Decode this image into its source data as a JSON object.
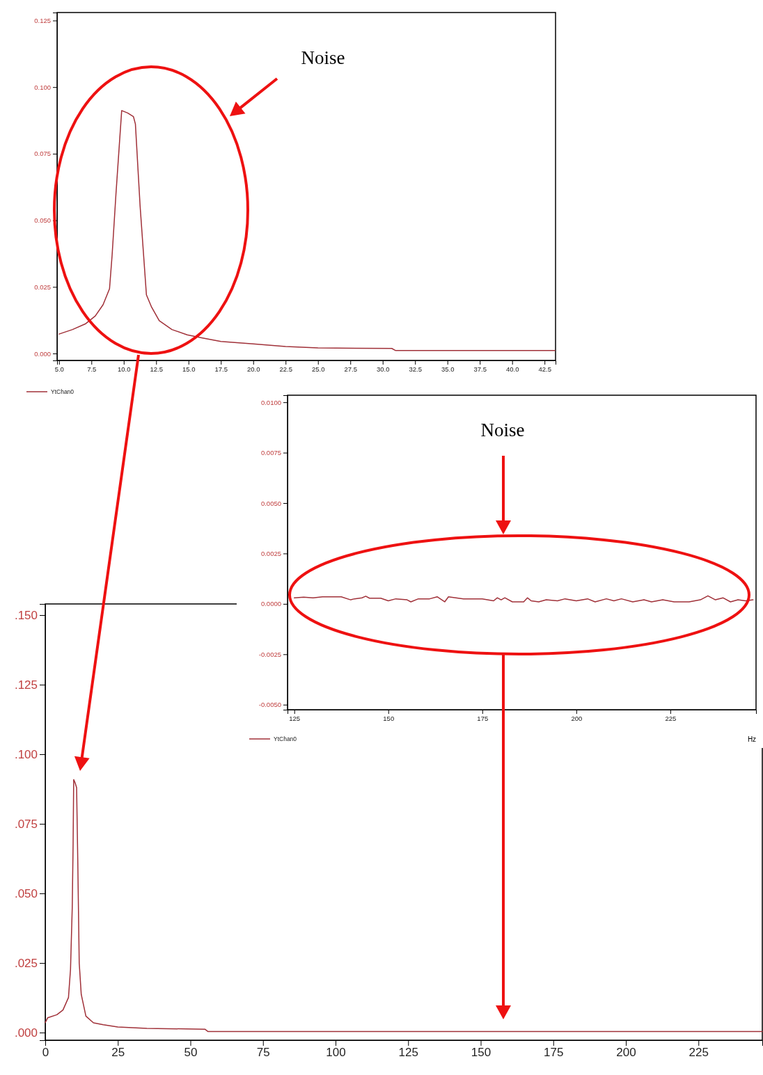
{
  "chart_data": [
    {
      "type": "line",
      "xlim": [
        4.85,
        43.35
      ],
      "ylim": [
        -0.0026,
        0.128
      ],
      "xticks": [
        {
          "value": 5,
          "label": "5.0"
        },
        7.5,
        {
          "value": 10,
          "label": "10.0"
        },
        12.5,
        {
          "value": 15,
          "label": "15.0"
        },
        17.5,
        {
          "value": 20,
          "label": "20.0"
        },
        22.5,
        {
          "value": 25,
          "label": "25.0"
        },
        27.5,
        {
          "value": 30,
          "label": "30.0"
        },
        32.5,
        {
          "value": 35,
          "label": "35.0"
        },
        37.5,
        {
          "value": 40,
          "label": "40.0"
        },
        42.5
      ],
      "yticks": [
        {
          "value": 0,
          "label": "0.000"
        },
        0.025,
        {
          "value": 0.05,
          "label": "0.050"
        },
        0.075,
        {
          "value": 0.1,
          "label": "0.100"
        },
        0.125
      ],
      "legend": "bottom left",
      "annotations": [
        "Noise"
      ],
      "series": [
        {
          "name": "YtChan0",
          "color": "#a03038",
          "x": [
            5,
            6.04,
            7.03,
            7.8,
            8.4,
            8.9,
            9.1,
            9.4,
            9.84,
            10.3,
            10.75,
            10.9,
            11.26,
            11.75,
            12.15,
            12.74,
            13.72,
            14.9,
            16.08,
            17.5,
            20,
            22.5,
            25,
            30.7,
            31,
            43.3
          ],
          "values": [
            0.0073,
            0.009,
            0.0111,
            0.0141,
            0.0183,
            0.0243,
            0.0369,
            0.0601,
            0.0912,
            0.0903,
            0.0889,
            0.0861,
            0.0555,
            0.022,
            0.0174,
            0.0123,
            0.009,
            0.007,
            0.0058,
            0.0045,
            0.0036,
            0.0026,
            0.0021,
            0.0019,
            0.0011,
            0.0011
          ]
        }
      ]
    },
    {
      "type": "line",
      "xlim": [
        123.2,
        247.8
      ],
      "ylim": [
        -0.00525,
        0.01035
      ],
      "xlabel": "Hz",
      "xticks": [
        125,
        150,
        175,
        200,
        225
      ],
      "yticks": [
        {
          "value": -0.005,
          "label": "-0.0050"
        },
        {
          "value": -0.0025,
          "label": "-0.0025"
        },
        {
          "value": 0,
          "label": "0.0000"
        },
        {
          "value": 0.0025,
          "label": "0.0025"
        },
        {
          "value": 0.005,
          "label": "0.0050"
        },
        {
          "value": 0.0075,
          "label": "0.0075"
        },
        {
          "value": 0.01,
          "label": "0.0100"
        }
      ],
      "legend": "bottom left",
      "annotations": [
        "Noise"
      ],
      "series": [
        {
          "name": "YtChan0",
          "color": "#a03038",
          "x": [
            125,
            127.5,
            130,
            132.5,
            135,
            137.5,
            140,
            141,
            143,
            144,
            145,
            148,
            150,
            152,
            155,
            156,
            158,
            161,
            163,
            165,
            166,
            170,
            175,
            178,
            179,
            180,
            181,
            183,
            186,
            187,
            188,
            190,
            192,
            195,
            197,
            200,
            203,
            205,
            208,
            210,
            212,
            215,
            218,
            220,
            223,
            226,
            230,
            233,
            235,
            237,
            239,
            241,
            243,
            245,
            247
          ],
          "values": [
            0.0003,
            0.00033,
            0.0003,
            0.00035,
            0.00035,
            0.00035,
            0.0002,
            0.00025,
            0.0003,
            0.00038,
            0.00028,
            0.00028,
            0.00015,
            0.00025,
            0.0002,
            0.0001,
            0.00025,
            0.00025,
            0.00035,
            0.0001,
            0.00035,
            0.00025,
            0.00025,
            0.00015,
            0.0003,
            0.0002,
            0.0003,
            0.0001,
            0.0001,
            0.0003,
            0.00015,
            0.0001,
            0.0002,
            0.00015,
            0.00025,
            0.00015,
            0.00025,
            0.0001,
            0.00025,
            0.00015,
            0.00025,
            0.0001,
            0.0002,
            0.0001,
            0.0002,
            0.0001,
            0.0001,
            0.0002,
            0.0004,
            0.0002,
            0.0003,
            0.0001,
            0.0002,
            0.00015,
            0.0002
          ]
        }
      ]
    },
    {
      "type": "line",
      "xlim": [
        0,
        247
      ],
      "ylim": [
        -0.00275,
        0.154
      ],
      "xticks": [
        0,
        25,
        50,
        75,
        100,
        125,
        150,
        175,
        200,
        225
      ],
      "yticks": [
        {
          "value": 0,
          "label": ".000"
        },
        {
          "value": 0.025,
          "label": ".025"
        },
        {
          "value": 0.05,
          "label": ".050"
        },
        {
          "value": 0.075,
          "label": ".075"
        },
        {
          "value": 0.1,
          "label": ".100"
        },
        {
          "value": 0.125,
          "label": ".125"
        },
        {
          "value": 0.15,
          "label": ".150"
        }
      ],
      "series": [
        {
          "color": "#a03038",
          "x": [
            0,
            0.84,
            4,
            6.1,
            8,
            8.7,
            9.3,
            9.6,
            9.8,
            10.3,
            10.8,
            11.2,
            11.7,
            12.4,
            14,
            16.6,
            20,
            25,
            35,
            55,
            56,
            247
          ],
          "values": [
            0.0036,
            0.0053,
            0.0064,
            0.0081,
            0.0126,
            0.0227,
            0.045,
            0.068,
            0.0909,
            0.0897,
            0.088,
            0.062,
            0.025,
            0.0137,
            0.0059,
            0.0035,
            0.0028,
            0.002,
            0.0015,
            0.0012,
            0.0004,
            0.0004
          ]
        }
      ]
    }
  ]
}
